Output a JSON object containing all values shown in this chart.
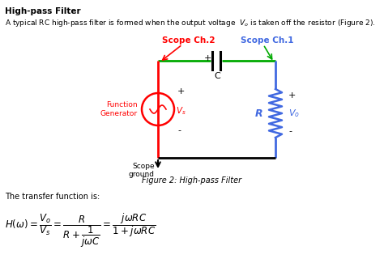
{
  "title": "High-pass Filter",
  "subtitle": "A typical RC high-pass filter is formed when the output voltage  $V_o$ is taken off the resistor (Figure 2).",
  "figure_caption": "Figure 2: High-pass Filter",
  "transfer_text": "The transfer function is:",
  "scope_ch2_label": "Scope Ch.2",
  "scope_ch1_label": "Scope Ch.1",
  "func_gen_label": "Function\nGenerator",
  "scope_ground_label": "Scope\nground",
  "R_label": "R",
  "C_label": "C",
  "Vs_label": "$V_s$",
  "Vo_label": "$V_o$",
  "color_red": "#FF0000",
  "color_blue": "#4169E1",
  "color_green": "#00AA00",
  "color_black": "#000000",
  "bg_color": "#FFFFFF"
}
